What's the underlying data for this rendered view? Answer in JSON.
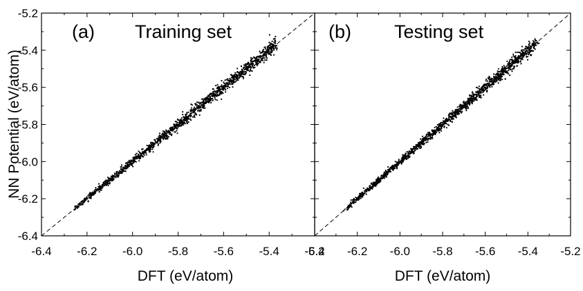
{
  "chart_data": {
    "type": "scatter",
    "ylabel": "NN Potential (eV/atom)",
    "xlabel": "DFT (eV/atom)",
    "xlim": [
      -6.4,
      -5.2
    ],
    "ylim": [
      -6.4,
      -5.2
    ],
    "x_ticks": [
      "-6.4",
      "-6.2",
      "-6.0",
      "-5.8",
      "-5.6",
      "-5.4",
      "-5.2"
    ],
    "y_ticks": [
      "-6.4",
      "-6.2",
      "-6.0",
      "-5.8",
      "-5.6",
      "-5.4",
      "-5.2"
    ],
    "reference_line": "y = x (dashed)",
    "marker_color": "#000000",
    "panels": [
      {
        "label": "(a)",
        "title": "Training set",
        "x_range": [
          -6.26,
          -5.37
        ],
        "spread": 0.012
      },
      {
        "label": "(b)",
        "title": "Testing set",
        "x_range": [
          -6.26,
          -5.36
        ],
        "spread": 0.011
      }
    ]
  }
}
